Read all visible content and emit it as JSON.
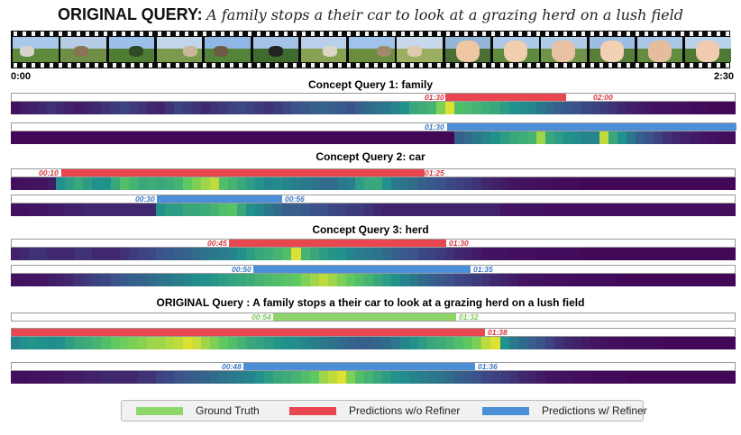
{
  "title": {
    "label": "ORIGINAL QUERY:",
    "text": "A family stops a their car to look at a grazing herd on a lush field"
  },
  "timeline": {
    "start": "0:00",
    "end": "2:30"
  },
  "film_frames": [
    {
      "sky": "#a9c7e8",
      "ground": "#5f8a3c",
      "obj": "#d8d4cc"
    },
    {
      "sky": "#b7cde6",
      "ground": "#6e8f45",
      "obj": "#8b7355"
    },
    {
      "sky": "#9cc0ea",
      "ground": "#4f7d34",
      "obj": "#2f4a26"
    },
    {
      "sky": "#c3d5ea",
      "ground": "#7a9a4c",
      "obj": "#c9b79a"
    },
    {
      "sky": "#8eb7e6",
      "ground": "#53843a",
      "obj": "#6b5a44"
    },
    {
      "sky": "#a4c3e6",
      "ground": "#3f6b2c",
      "obj": "#222222"
    },
    {
      "sky": "#b8d0ec",
      "ground": "#86a252",
      "obj": "#dcd6c8"
    },
    {
      "sky": "#9fc3ea",
      "ground": "#6a8e3e",
      "obj": "#a0886a"
    },
    {
      "sky": "#c7d8ea",
      "ground": "#9ab060",
      "obj": "#e0c9ad"
    },
    {
      "sky": "#93b6d8",
      "ground": "#4a6e34",
      "obj": "#efc7a4"
    },
    {
      "sky": "#aac8e8",
      "ground": "#5e8a3e",
      "obj": "#f0cfae"
    },
    {
      "sky": "#b2cbe6",
      "ground": "#6f9448",
      "obj": "#e8c2a2"
    },
    {
      "sky": "#9cbde4",
      "ground": "#577f38",
      "obj": "#f2d0b4"
    },
    {
      "sky": "#a8c6e6",
      "ground": "#628c40",
      "obj": "#e6bd9c"
    },
    {
      "sky": "#b9d2ec",
      "ground": "#4e7a34",
      "obj": "#f0cbb0"
    }
  ],
  "concepts": [
    {
      "heading": "Concept Query 1: family",
      "pred": {
        "start": "01:30",
        "end": "02:00"
      },
      "refined": {
        "start": "01:30"
      }
    },
    {
      "heading": "Concept Query 2: car",
      "pred": {
        "start": "00:10",
        "end": "01:25"
      },
      "refined": {
        "start": "00:30",
        "end": "00:56"
      }
    },
    {
      "heading": "Concept Query 3: herd",
      "pred": {
        "start": "00:45",
        "end": "01:30"
      },
      "refined": {
        "start": "00:50",
        "end": "01:35"
      }
    }
  ],
  "original": {
    "heading": "ORIGINAL Query : A family stops a their car to look at a grazing herd on a lush field",
    "gt": {
      "start": "00:54",
      "end": "01:32"
    },
    "pred": {
      "start": "01:38"
    },
    "refined": {
      "start": "00:48",
      "end": "01:36"
    }
  },
  "legend": {
    "gt": "Ground Truth",
    "pred": "Predictions w/o Refiner",
    "refined": "Predictions w/ Refiner"
  },
  "colors": {
    "gt": "#8fd66a",
    "pred": "#e8474f",
    "refined": "#4a8fd8"
  },
  "heatmaps": [
    [
      0.05,
      0.08,
      0.1,
      0.12,
      0.15,
      0.12,
      0.1,
      0.08,
      0.1,
      0.12,
      0.15,
      0.18,
      0.2,
      0.18,
      0.15,
      0.12,
      0.1,
      0.15,
      0.2,
      0.18,
      0.15,
      0.12,
      0.15,
      0.18,
      0.2,
      0.22,
      0.2,
      0.18,
      0.15,
      0.18,
      0.22,
      0.25,
      0.28,
      0.3,
      0.32,
      0.3,
      0.28,
      0.25,
      0.3,
      0.35,
      0.38,
      0.4,
      0.45,
      0.5,
      0.6,
      0.62,
      0.65,
      0.8,
      0.95,
      0.7,
      0.68,
      0.65,
      0.62,
      0.6,
      0.55,
      0.5,
      0.48,
      0.45,
      0.4,
      0.35,
      0.3,
      0.28,
      0.25,
      0.22,
      0.2,
      0.18,
      0.15,
      0.12,
      0.1,
      0.08,
      0.06,
      0.05,
      0.05,
      0.04,
      0.04,
      0.03,
      0.03,
      0.02,
      0.02,
      0.02
    ],
    [
      0.02,
      0.02,
      0.02,
      0.02,
      0.02,
      0.02,
      0.02,
      0.02,
      0.02,
      0.02,
      0.02,
      0.02,
      0.02,
      0.02,
      0.02,
      0.02,
      0.02,
      0.02,
      0.02,
      0.02,
      0.02,
      0.02,
      0.02,
      0.02,
      0.02,
      0.02,
      0.02,
      0.02,
      0.02,
      0.02,
      0.02,
      0.02,
      0.02,
      0.02,
      0.02,
      0.02,
      0.02,
      0.02,
      0.02,
      0.02,
      0.02,
      0.02,
      0.02,
      0.02,
      0.02,
      0.02,
      0.02,
      0.02,
      0.02,
      0.3,
      0.35,
      0.4,
      0.45,
      0.5,
      0.55,
      0.6,
      0.62,
      0.65,
      0.85,
      0.6,
      0.55,
      0.5,
      0.48,
      0.45,
      0.45,
      0.9,
      0.6,
      0.5,
      0.4,
      0.3,
      0.25,
      0.2,
      0.15,
      0.12,
      0.1,
      0.08,
      0.06,
      0.05,
      0.04,
      0.04
    ],
    [
      0.04,
      0.05,
      0.06,
      0.06,
      0.08,
      0.5,
      0.55,
      0.6,
      0.55,
      0.5,
      0.5,
      0.6,
      0.7,
      0.65,
      0.6,
      0.62,
      0.6,
      0.62,
      0.65,
      0.75,
      0.8,
      0.85,
      0.9,
      0.7,
      0.65,
      0.6,
      0.55,
      0.5,
      0.45,
      0.48,
      0.45,
      0.42,
      0.4,
      0.38,
      0.35,
      0.35,
      0.4,
      0.42,
      0.55,
      0.6,
      0.6,
      0.5,
      0.4,
      0.38,
      0.35,
      0.3,
      0.28,
      0.25,
      0.22,
      0.2,
      0.18,
      0.15,
      0.12,
      0.1,
      0.08,
      0.06,
      0.05,
      0.05,
      0.04,
      0.04,
      0.03,
      0.03,
      0.03,
      0.02,
      0.02,
      0.02,
      0.02,
      0.02,
      0.02,
      0.02,
      0.02,
      0.02,
      0.02,
      0.02,
      0.02,
      0.02,
      0.02,
      0.02,
      0.02,
      0.02
    ],
    [
      0.05,
      0.05,
      0.06,
      0.06,
      0.08,
      0.08,
      0.1,
      0.1,
      0.12,
      0.12,
      0.12,
      0.12,
      0.12,
      0.12,
      0.12,
      0.12,
      0.5,
      0.55,
      0.55,
      0.6,
      0.6,
      0.62,
      0.65,
      0.7,
      0.72,
      0.6,
      0.5,
      0.45,
      0.4,
      0.35,
      0.3,
      0.3,
      0.28,
      0.25,
      0.25,
      0.22,
      0.2,
      0.18,
      0.18,
      0.15,
      0.12,
      0.1,
      0.1,
      0.1,
      0.1,
      0.1,
      0.1,
      0.1,
      0.1,
      0.1,
      0.1,
      0.1,
      0.1,
      0.1,
      0.06,
      0.06,
      0.05,
      0.05,
      0.05,
      0.04,
      0.04,
      0.04,
      0.04,
      0.04,
      0.04,
      0.04,
      0.04,
      0.04,
      0.04,
      0.04,
      0.04,
      0.04,
      0.04,
      0.04,
      0.04,
      0.04,
      0.04,
      0.04,
      0.04,
      0.04
    ],
    [
      0.1,
      0.12,
      0.15,
      0.15,
      0.12,
      0.12,
      0.12,
      0.15,
      0.15,
      0.12,
      0.12,
      0.12,
      0.15,
      0.18,
      0.2,
      0.22,
      0.25,
      0.28,
      0.3,
      0.32,
      0.35,
      0.38,
      0.4,
      0.42,
      0.45,
      0.5,
      0.55,
      0.6,
      0.62,
      0.65,
      0.7,
      0.95,
      0.65,
      0.6,
      0.55,
      0.52,
      0.5,
      0.45,
      0.42,
      0.4,
      0.38,
      0.35,
      0.3,
      0.28,
      0.25,
      0.22,
      0.2,
      0.18,
      0.15,
      0.12,
      0.1,
      0.08,
      0.06,
      0.05,
      0.05,
      0.04,
      0.04,
      0.04,
      0.03,
      0.03,
      0.03,
      0.03,
      0.03,
      0.02,
      0.02,
      0.02,
      0.02,
      0.02,
      0.02,
      0.02,
      0.02,
      0.02,
      0.02,
      0.02,
      0.02,
      0.02,
      0.02,
      0.02,
      0.02,
      0.02
    ],
    [
      0.05,
      0.05,
      0.06,
      0.06,
      0.08,
      0.1,
      0.12,
      0.15,
      0.18,
      0.2,
      0.22,
      0.25,
      0.28,
      0.3,
      0.32,
      0.35,
      0.38,
      0.4,
      0.42,
      0.45,
      0.48,
      0.5,
      0.52,
      0.55,
      0.58,
      0.6,
      0.62,
      0.65,
      0.68,
      0.7,
      0.72,
      0.75,
      0.8,
      0.85,
      0.9,
      0.85,
      0.8,
      0.75,
      0.7,
      0.65,
      0.6,
      0.55,
      0.5,
      0.45,
      0.4,
      0.35,
      0.3,
      0.28,
      0.25,
      0.22,
      0.2,
      0.18,
      0.15,
      0.12,
      0.1,
      0.08,
      0.06,
      0.05,
      0.05,
      0.04,
      0.04,
      0.04,
      0.03,
      0.03,
      0.03,
      0.03,
      0.03,
      0.02,
      0.02,
      0.02,
      0.02,
      0.02,
      0.02,
      0.02,
      0.02,
      0.02,
      0.02,
      0.02,
      0.02,
      0.02
    ],
    [
      0.45,
      0.5,
      0.52,
      0.5,
      0.48,
      0.5,
      0.55,
      0.6,
      0.62,
      0.65,
      0.7,
      0.75,
      0.78,
      0.8,
      0.82,
      0.85,
      0.85,
      0.88,
      0.9,
      0.95,
      0.92,
      0.85,
      0.8,
      0.75,
      0.7,
      0.65,
      0.6,
      0.58,
      0.55,
      0.52,
      0.5,
      0.48,
      0.45,
      0.42,
      0.4,
      0.38,
      0.35,
      0.32,
      0.3,
      0.3,
      0.32,
      0.35,
      0.4,
      0.45,
      0.5,
      0.55,
      0.6,
      0.62,
      0.65,
      0.7,
      0.75,
      0.8,
      0.9,
      0.95,
      0.5,
      0.4,
      0.35,
      0.3,
      0.25,
      0.2,
      0.15,
      0.12,
      0.1,
      0.08,
      0.06,
      0.05,
      0.04,
      0.04,
      0.03,
      0.03,
      0.03,
      0.03,
      0.02,
      0.02,
      0.02,
      0.02,
      0.02,
      0.02,
      0.02,
      0.02
    ],
    [
      0.04,
      0.04,
      0.05,
      0.05,
      0.06,
      0.06,
      0.08,
      0.08,
      0.1,
      0.1,
      0.12,
      0.12,
      0.12,
      0.12,
      0.15,
      0.15,
      0.2,
      0.22,
      0.25,
      0.28,
      0.3,
      0.32,
      0.35,
      0.38,
      0.4,
      0.42,
      0.45,
      0.5,
      0.55,
      0.6,
      0.62,
      0.65,
      0.7,
      0.75,
      0.85,
      0.9,
      0.95,
      0.8,
      0.7,
      0.65,
      0.6,
      0.55,
      0.5,
      0.48,
      0.45,
      0.42,
      0.4,
      0.38,
      0.35,
      0.3,
      0.28,
      0.25,
      0.22,
      0.2,
      0.18,
      0.15,
      0.12,
      0.1,
      0.08,
      0.06,
      0.05,
      0.05,
      0.04,
      0.04,
      0.03,
      0.03,
      0.03,
      0.03,
      0.02,
      0.02,
      0.02,
      0.02,
      0.02,
      0.02,
      0.02,
      0.02,
      0.02,
      0.02,
      0.02,
      0.02
    ]
  ]
}
